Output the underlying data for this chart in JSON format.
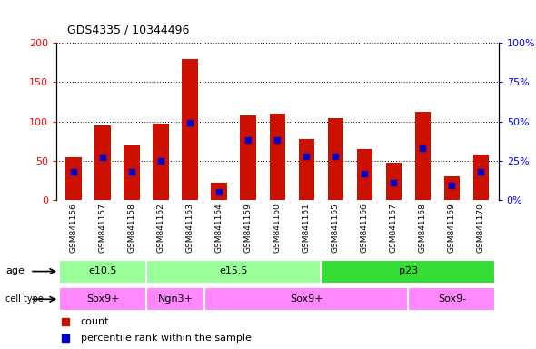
{
  "title": "GDS4335 / 10344496",
  "samples": [
    "GSM841156",
    "GSM841157",
    "GSM841158",
    "GSM841162",
    "GSM841163",
    "GSM841164",
    "GSM841159",
    "GSM841160",
    "GSM841161",
    "GSM841165",
    "GSM841166",
    "GSM841167",
    "GSM841168",
    "GSM841169",
    "GSM841170"
  ],
  "counts": [
    54,
    95,
    70,
    97,
    180,
    22,
    108,
    110,
    78,
    104,
    65,
    48,
    112,
    30,
    58
  ],
  "percentiles": [
    18,
    27,
    18,
    25,
    49,
    5,
    38,
    38,
    28,
    28,
    17,
    11,
    33,
    9,
    18
  ],
  "ylim_left": [
    0,
    200
  ],
  "ylim_right": [
    0,
    100
  ],
  "yticks_left": [
    0,
    50,
    100,
    150,
    200
  ],
  "yticks_right": [
    0,
    25,
    50,
    75,
    100
  ],
  "age_groups": [
    {
      "label": "e10.5",
      "start": 0,
      "end": 3,
      "color": "#99ff99"
    },
    {
      "label": "e15.5",
      "start": 3,
      "end": 9,
      "color": "#99ff99"
    },
    {
      "label": "p23",
      "start": 9,
      "end": 15,
      "color": "#33dd33"
    }
  ],
  "cell_type_groups": [
    {
      "label": "Sox9+",
      "start": 0,
      "end": 3,
      "color": "#ff88ff"
    },
    {
      "label": "Ngn3+",
      "start": 3,
      "end": 5,
      "color": "#ff88ff"
    },
    {
      "label": "Sox9+",
      "start": 5,
      "end": 12,
      "color": "#ff88ff"
    },
    {
      "label": "Sox9-",
      "start": 12,
      "end": 15,
      "color": "#ff88ff"
    }
  ],
  "bar_color": "#cc1100",
  "marker_color": "#0000cc",
  "xtick_bg": "#cccccc",
  "legend_count_color": "#cc1100",
  "legend_pct_color": "#0000cc"
}
